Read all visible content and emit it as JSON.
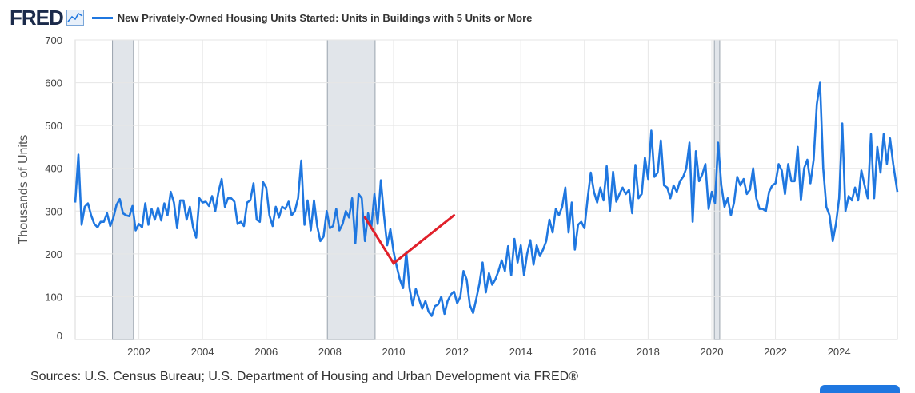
{
  "header": {
    "logo_text": "FRED",
    "logo_icon": "line-chart-icon",
    "series_title": "New Privately-Owned Housing Units Started: Units in Buildings with 5 Units or More"
  },
  "footer": {
    "sources": "Sources: U.S. Census Bureau; U.S. Department of Housing and Urban Development via FRED®"
  },
  "colors": {
    "series": "#1f77e0",
    "recession": "#e1e5ea",
    "annotation": "#e0202a",
    "grid": "#e6e6e6"
  },
  "chart_data": {
    "type": "line",
    "title": "New Privately-Owned Housing Units Started: Units in Buildings with 5 Units or More",
    "ylabel": "Thousands of Units",
    "xlabel": "",
    "ylim": [
      0,
      700
    ],
    "xlim": [
      2000.0,
      2025.83
    ],
    "yticks": [
      0,
      100,
      200,
      300,
      400,
      500,
      600,
      700
    ],
    "xticks": [
      2002,
      2004,
      2006,
      2008,
      2010,
      2012,
      2014,
      2016,
      2018,
      2020,
      2022,
      2024
    ],
    "recessions": [
      [
        2001.17,
        2001.83
      ],
      [
        2007.92,
        2009.42
      ],
      [
        2020.08,
        2020.25
      ]
    ],
    "annotation": {
      "type": "check-mark",
      "points": [
        [
          2009.1,
          285
        ],
        [
          2010.0,
          178
        ],
        [
          2011.9,
          290
        ]
      ]
    },
    "series": [
      {
        "name": "New Privately-Owned Housing Units Started: Units in Buildings with 5 Units or More",
        "points": [
          [
            2000.0,
            320
          ],
          [
            2000.1,
            432
          ],
          [
            2000.2,
            268
          ],
          [
            2000.3,
            310
          ],
          [
            2000.4,
            318
          ],
          [
            2000.5,
            290
          ],
          [
            2000.6,
            270
          ],
          [
            2000.7,
            262
          ],
          [
            2000.8,
            275
          ],
          [
            2000.9,
            275
          ],
          [
            2001.0,
            295
          ],
          [
            2001.1,
            265
          ],
          [
            2001.2,
            285
          ],
          [
            2001.3,
            315
          ],
          [
            2001.4,
            328
          ],
          [
            2001.5,
            295
          ],
          [
            2001.6,
            290
          ],
          [
            2001.7,
            288
          ],
          [
            2001.8,
            312
          ],
          [
            2001.9,
            255
          ],
          [
            2002.0,
            270
          ],
          [
            2002.1,
            262
          ],
          [
            2002.2,
            318
          ],
          [
            2002.3,
            268
          ],
          [
            2002.4,
            305
          ],
          [
            2002.5,
            280
          ],
          [
            2002.6,
            308
          ],
          [
            2002.7,
            278
          ],
          [
            2002.8,
            318
          ],
          [
            2002.9,
            290
          ],
          [
            2003.0,
            345
          ],
          [
            2003.1,
            320
          ],
          [
            2003.2,
            260
          ],
          [
            2003.3,
            325
          ],
          [
            2003.4,
            325
          ],
          [
            2003.5,
            280
          ],
          [
            2003.6,
            310
          ],
          [
            2003.7,
            262
          ],
          [
            2003.8,
            238
          ],
          [
            2003.9,
            330
          ],
          [
            2004.0,
            320
          ],
          [
            2004.1,
            322
          ],
          [
            2004.2,
            312
          ],
          [
            2004.3,
            335
          ],
          [
            2004.4,
            300
          ],
          [
            2004.5,
            345
          ],
          [
            2004.6,
            375
          ],
          [
            2004.7,
            310
          ],
          [
            2004.8,
            330
          ],
          [
            2004.9,
            330
          ],
          [
            2005.0,
            322
          ],
          [
            2005.1,
            270
          ],
          [
            2005.2,
            275
          ],
          [
            2005.3,
            265
          ],
          [
            2005.4,
            320
          ],
          [
            2005.5,
            325
          ],
          [
            2005.6,
            365
          ],
          [
            2005.7,
            280
          ],
          [
            2005.8,
            275
          ],
          [
            2005.9,
            368
          ],
          [
            2006.0,
            355
          ],
          [
            2006.1,
            290
          ],
          [
            2006.2,
            265
          ],
          [
            2006.3,
            310
          ],
          [
            2006.4,
            285
          ],
          [
            2006.5,
            310
          ],
          [
            2006.6,
            305
          ],
          [
            2006.7,
            322
          ],
          [
            2006.8,
            290
          ],
          [
            2006.9,
            300
          ],
          [
            2007.0,
            330
          ],
          [
            2007.1,
            418
          ],
          [
            2007.2,
            268
          ],
          [
            2007.3,
            325
          ],
          [
            2007.4,
            255
          ],
          [
            2007.5,
            325
          ],
          [
            2007.6,
            265
          ],
          [
            2007.7,
            230
          ],
          [
            2007.8,
            240
          ],
          [
            2007.9,
            300
          ],
          [
            2008.0,
            260
          ],
          [
            2008.1,
            265
          ],
          [
            2008.2,
            305
          ],
          [
            2008.3,
            255
          ],
          [
            2008.4,
            270
          ],
          [
            2008.5,
            300
          ],
          [
            2008.6,
            285
          ],
          [
            2008.7,
            330
          ],
          [
            2008.8,
            225
          ],
          [
            2008.9,
            340
          ],
          [
            2009.0,
            330
          ],
          [
            2009.1,
            230
          ],
          [
            2009.2,
            295
          ],
          [
            2009.3,
            260
          ],
          [
            2009.4,
            340
          ],
          [
            2009.5,
            270
          ],
          [
            2009.6,
            372
          ],
          [
            2009.7,
            290
          ],
          [
            2009.8,
            220
          ],
          [
            2009.9,
            258
          ],
          [
            2010.0,
            205
          ],
          [
            2010.1,
            170
          ],
          [
            2010.2,
            140
          ],
          [
            2010.3,
            120
          ],
          [
            2010.4,
            205
          ],
          [
            2010.5,
            120
          ],
          [
            2010.6,
            80
          ],
          [
            2010.7,
            118
          ],
          [
            2010.8,
            95
          ],
          [
            2010.9,
            72
          ],
          [
            2011.0,
            90
          ],
          [
            2011.1,
            65
          ],
          [
            2011.2,
            55
          ],
          [
            2011.3,
            78
          ],
          [
            2011.4,
            82
          ],
          [
            2011.5,
            100
          ],
          [
            2011.6,
            60
          ],
          [
            2011.7,
            90
          ],
          [
            2011.8,
            105
          ],
          [
            2011.9,
            112
          ],
          [
            2012.0,
            85
          ],
          [
            2012.1,
            100
          ],
          [
            2012.2,
            160
          ],
          [
            2012.3,
            140
          ],
          [
            2012.4,
            80
          ],
          [
            2012.5,
            62
          ],
          [
            2012.6,
            95
          ],
          [
            2012.7,
            130
          ],
          [
            2012.8,
            180
          ],
          [
            2012.9,
            110
          ],
          [
            2013.0,
            155
          ],
          [
            2013.1,
            128
          ],
          [
            2013.2,
            140
          ],
          [
            2013.3,
            160
          ],
          [
            2013.4,
            185
          ],
          [
            2013.5,
            160
          ],
          [
            2013.6,
            218
          ],
          [
            2013.7,
            150
          ],
          [
            2013.8,
            235
          ],
          [
            2013.9,
            180
          ],
          [
            2014.0,
            220
          ],
          [
            2014.1,
            150
          ],
          [
            2014.2,
            200
          ],
          [
            2014.3,
            232
          ],
          [
            2014.4,
            175
          ],
          [
            2014.5,
            220
          ],
          [
            2014.6,
            195
          ],
          [
            2014.7,
            210
          ],
          [
            2014.8,
            230
          ],
          [
            2014.9,
            280
          ],
          [
            2015.0,
            250
          ],
          [
            2015.1,
            305
          ],
          [
            2015.2,
            290
          ],
          [
            2015.3,
            310
          ],
          [
            2015.4,
            355
          ],
          [
            2015.5,
            250
          ],
          [
            2015.6,
            320
          ],
          [
            2015.7,
            210
          ],
          [
            2015.8,
            268
          ],
          [
            2015.9,
            275
          ],
          [
            2016.0,
            260
          ],
          [
            2016.1,
            330
          ],
          [
            2016.2,
            390
          ],
          [
            2016.3,
            345
          ],
          [
            2016.4,
            320
          ],
          [
            2016.5,
            355
          ],
          [
            2016.6,
            325
          ],
          [
            2016.7,
            405
          ],
          [
            2016.8,
            300
          ],
          [
            2016.9,
            392
          ],
          [
            2017.0,
            322
          ],
          [
            2017.1,
            340
          ],
          [
            2017.2,
            355
          ],
          [
            2017.3,
            340
          ],
          [
            2017.4,
            350
          ],
          [
            2017.5,
            295
          ],
          [
            2017.6,
            408
          ],
          [
            2017.7,
            330
          ],
          [
            2017.8,
            340
          ],
          [
            2017.9,
            425
          ],
          [
            2018.0,
            375
          ],
          [
            2018.1,
            488
          ],
          [
            2018.2,
            380
          ],
          [
            2018.3,
            390
          ],
          [
            2018.4,
            465
          ],
          [
            2018.5,
            360
          ],
          [
            2018.6,
            355
          ],
          [
            2018.7,
            330
          ],
          [
            2018.8,
            360
          ],
          [
            2018.9,
            345
          ],
          [
            2019.0,
            370
          ],
          [
            2019.1,
            380
          ],
          [
            2019.2,
            400
          ],
          [
            2019.3,
            460
          ],
          [
            2019.4,
            275
          ],
          [
            2019.5,
            440
          ],
          [
            2019.6,
            370
          ],
          [
            2019.7,
            385
          ],
          [
            2019.8,
            410
          ],
          [
            2019.9,
            305
          ],
          [
            2020.0,
            345
          ],
          [
            2020.1,
            318
          ],
          [
            2020.2,
            460
          ],
          [
            2020.3,
            360
          ],
          [
            2020.4,
            310
          ],
          [
            2020.5,
            330
          ],
          [
            2020.6,
            290
          ],
          [
            2020.7,
            320
          ],
          [
            2020.8,
            380
          ],
          [
            2020.9,
            360
          ],
          [
            2021.0,
            375
          ],
          [
            2021.1,
            340
          ],
          [
            2021.2,
            350
          ],
          [
            2021.3,
            400
          ],
          [
            2021.4,
            330
          ],
          [
            2021.5,
            305
          ],
          [
            2021.6,
            305
          ],
          [
            2021.7,
            300
          ],
          [
            2021.8,
            345
          ],
          [
            2021.9,
            360
          ],
          [
            2022.0,
            365
          ],
          [
            2022.1,
            410
          ],
          [
            2022.2,
            395
          ],
          [
            2022.3,
            340
          ],
          [
            2022.4,
            410
          ],
          [
            2022.5,
            370
          ],
          [
            2022.6,
            370
          ],
          [
            2022.7,
            450
          ],
          [
            2022.8,
            325
          ],
          [
            2022.9,
            400
          ],
          [
            2023.0,
            420
          ],
          [
            2023.1,
            365
          ],
          [
            2023.2,
            420
          ],
          [
            2023.3,
            550
          ],
          [
            2023.4,
            600
          ],
          [
            2023.5,
            400
          ],
          [
            2023.6,
            310
          ],
          [
            2023.7,
            290
          ],
          [
            2023.8,
            230
          ],
          [
            2023.9,
            270
          ],
          [
            2024.0,
            330
          ],
          [
            2024.1,
            505
          ],
          [
            2024.2,
            300
          ],
          [
            2024.3,
            335
          ],
          [
            2024.4,
            325
          ],
          [
            2024.5,
            355
          ],
          [
            2024.6,
            325
          ],
          [
            2024.7,
            395
          ],
          [
            2024.8,
            360
          ],
          [
            2024.9,
            330
          ],
          [
            2025.0,
            480
          ],
          [
            2025.1,
            330
          ],
          [
            2025.2,
            450
          ],
          [
            2025.3,
            390
          ],
          [
            2025.4,
            480
          ],
          [
            2025.5,
            410
          ],
          [
            2025.6,
            470
          ],
          [
            2025.7,
            410
          ],
          [
            2025.83,
            345
          ]
        ]
      }
    ]
  }
}
